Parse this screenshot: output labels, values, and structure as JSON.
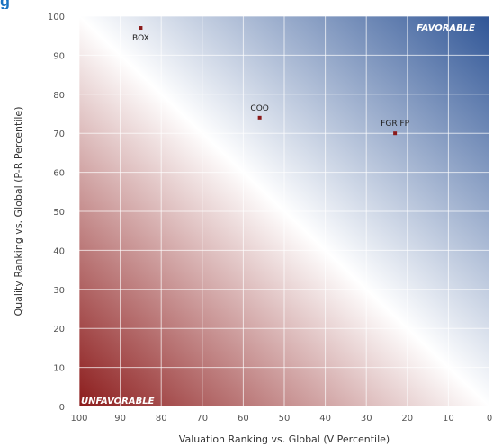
{
  "header": {
    "title_fragment": "g"
  },
  "chart_data": {
    "type": "scatter",
    "title": "",
    "xlabel": "Valuation Ranking vs. Global (V Percentile)",
    "ylabel": "Quality Ranking vs. Global (P-R Percentile)",
    "xlim": [
      100,
      0
    ],
    "ylim": [
      0,
      100
    ],
    "x_reversed": true,
    "xticks": [
      100,
      90,
      80,
      70,
      60,
      50,
      40,
      30,
      20,
      10,
      0
    ],
    "yticks": [
      0,
      10,
      20,
      30,
      40,
      50,
      60,
      70,
      80,
      90,
      100
    ],
    "grid": true,
    "corner_labels": {
      "top_right": "FAVORABLE",
      "bottom_left": "UNFAVORABLE"
    },
    "points": [
      {
        "label": "BOX",
        "x": 85,
        "y": 97
      },
      {
        "label": "COO",
        "x": 56,
        "y": 74
      },
      {
        "label": "FGR FP",
        "x": 23,
        "y": 70
      }
    ],
    "colors": {
      "favorable": "#2f5596",
      "unfavorable": "#8c1c1c",
      "point": "#8b1a1a",
      "grid": "#ffffff"
    }
  }
}
